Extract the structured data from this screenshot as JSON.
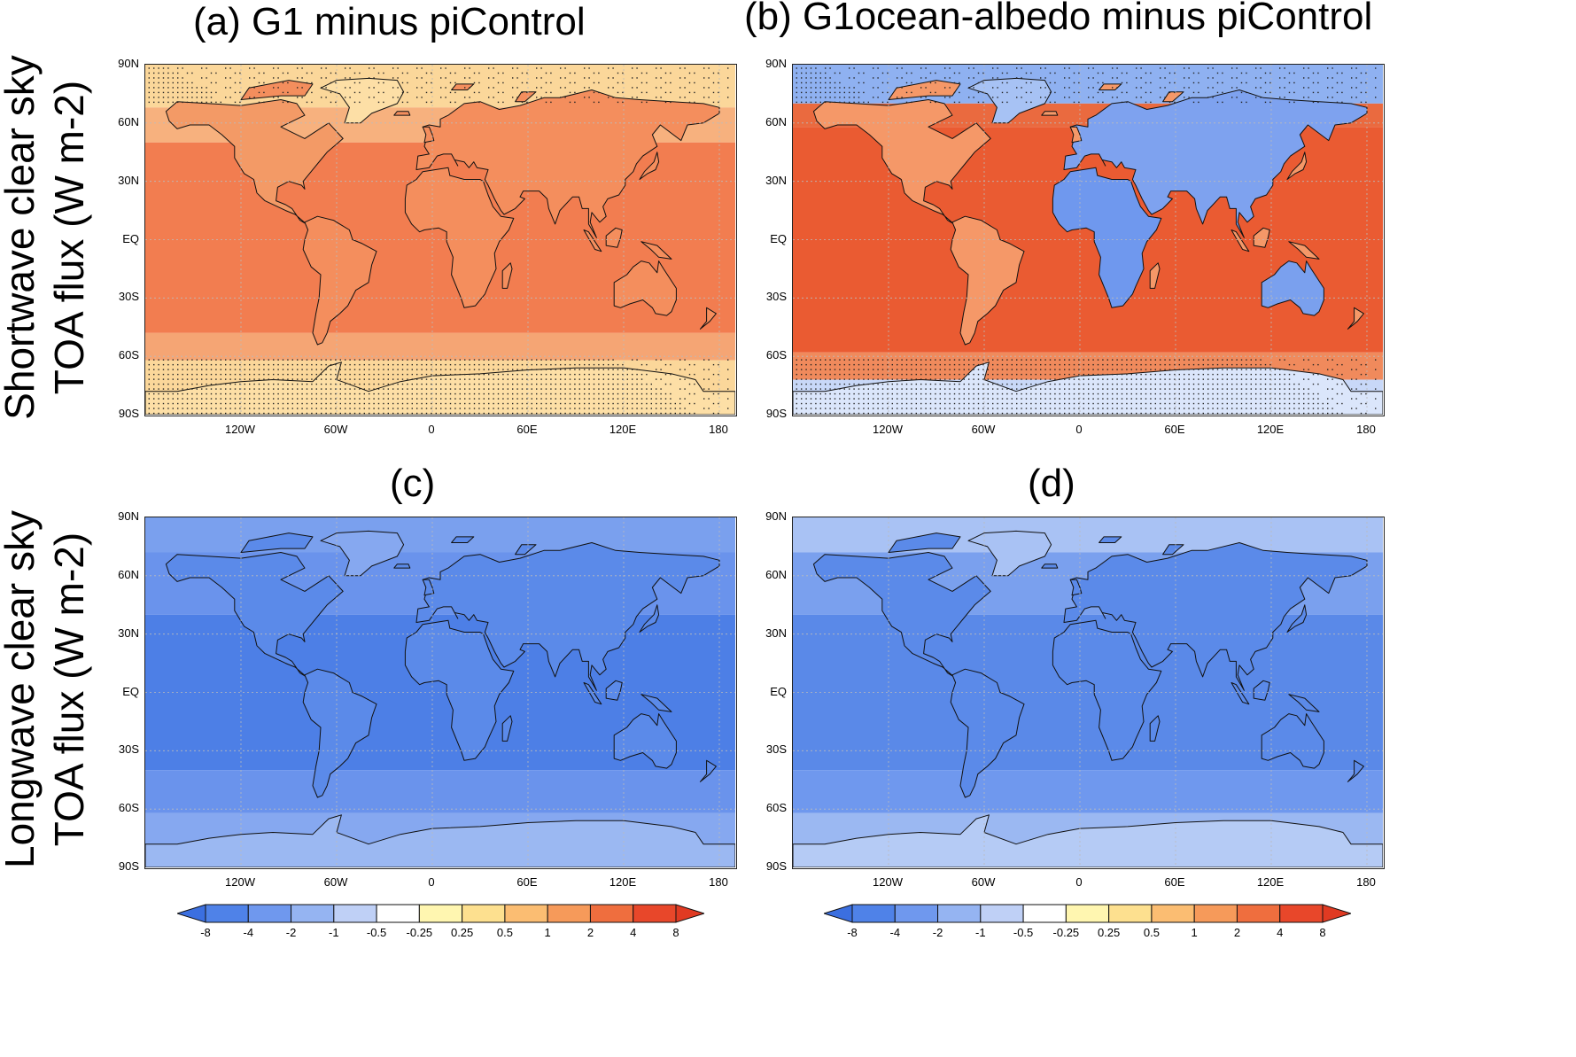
{
  "panels": [
    {
      "id": "a",
      "title": "(a)   G1 minus piControl",
      "scheme": "sw_g1"
    },
    {
      "id": "b",
      "title": "(b)  G1ocean-albedo minus piControl",
      "scheme": "sw_oa"
    },
    {
      "id": "c",
      "title": "(c)",
      "scheme": "lw_g1"
    },
    {
      "id": "d",
      "title": "(d)",
      "scheme": "lw_oa"
    }
  ],
  "row_labels": {
    "top": [
      "Shortwave  clear sky",
      "TOA flux  (W m-2)"
    ],
    "bottom": [
      "Longwave  clear sky",
      "TOA flux  (W m-2)"
    ]
  },
  "lat_ticks": [
    "90N",
    "60N",
    "30N",
    "EQ",
    "30S",
    "60S",
    "90S"
  ],
  "lon_ticks": [
    "120W",
    "60W",
    "0",
    "60E",
    "120E",
    "180"
  ],
  "colorbar": {
    "levels": [
      "-8",
      "-4",
      "-2",
      "-1",
      "-0.5",
      "-0.25",
      "0.25",
      "0.5",
      "1",
      "2",
      "4",
      "8"
    ],
    "colors": [
      "#3b6fe0",
      "#4f82e8",
      "#6f98ee",
      "#95b4f2",
      "#bfd0f6",
      "#ffffff",
      "#fff6b0",
      "#fde08f",
      "#fbbd72",
      "#f69a5a",
      "#ef6e3e",
      "#e8472a",
      "#e03a22"
    ]
  }
}
